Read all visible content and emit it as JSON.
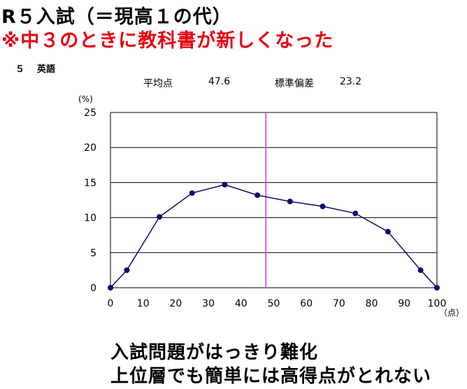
{
  "header": {
    "title": "R５入試（＝現高１の代）",
    "subtitle": "※中３のときに教科書が新しくなった"
  },
  "subject": {
    "number": "５",
    "name": "英語"
  },
  "stats": {
    "mean_label": "平均点",
    "mean_value": "47.6",
    "sd_label": "標準偏差",
    "sd_value": "23.2"
  },
  "chart_data": {
    "type": "line",
    "x": [
      0,
      5,
      15,
      25,
      35,
      45,
      55,
      65,
      75,
      85,
      95,
      100
    ],
    "series": [
      {
        "values": [
          0,
          2.5,
          10.1,
          13.5,
          14.7,
          13.2,
          12.3,
          11.6,
          10.6,
          8.0,
          2.5,
          0
        ]
      }
    ],
    "xlabel": "（点）",
    "ylabel": "(%)",
    "xlim": [
      0,
      100
    ],
    "ylim": [
      0,
      25
    ],
    "xticks": [
      0,
      10,
      20,
      30,
      40,
      50,
      60,
      70,
      80,
      90,
      100
    ],
    "yticks": [
      0,
      5,
      10,
      15,
      20,
      25
    ],
    "mean_line": 47.6,
    "grid": "horizontal",
    "colors": {
      "series": "#0a0a6e",
      "mean_line": "#d63ad6",
      "grid": "#000000"
    }
  },
  "caption": {
    "line1": "入試問題がはっきり難化",
    "line2": "上位層でも簡単には高得点がとれない"
  }
}
